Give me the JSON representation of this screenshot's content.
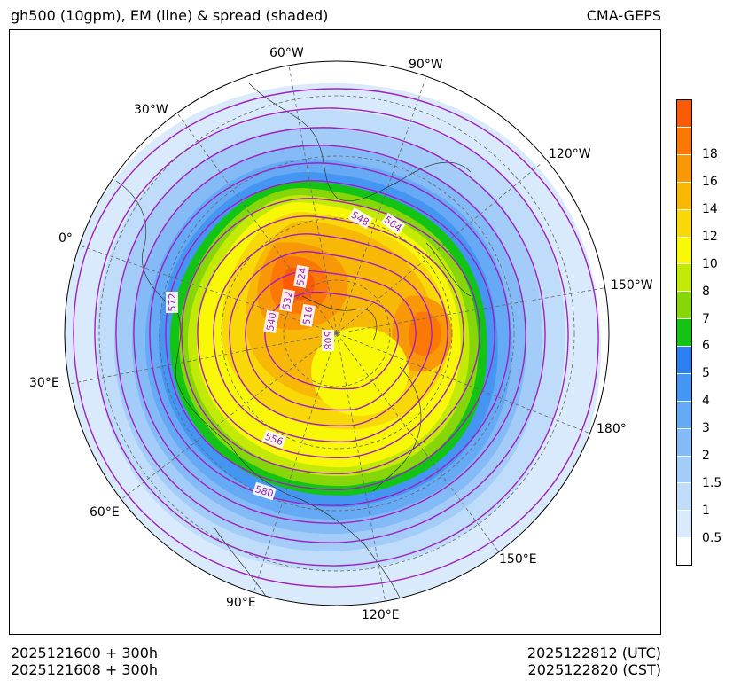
{
  "header": {
    "title": "gh500 (10gpm), EM (line) & spread (shaded)",
    "model": "CMA-GEPS"
  },
  "footer": {
    "init_utc": "2025121600 + 300h",
    "init_cst": "2025121608 + 300h",
    "valid_utc": "2025122812 (UTC)",
    "valid_cst": "2025122820 (CST)"
  },
  "map": {
    "projection": "north-polar-stereographic",
    "longitude_labels": [
      "60°W",
      "90°W",
      "30°W",
      "120°W",
      "0°",
      "150°W",
      "30°E",
      "180°",
      "60°E",
      "150°E",
      "90°E",
      "120°E"
    ],
    "contour_labels": [
      "548",
      "564",
      "572",
      "524",
      "532",
      "540",
      "516",
      "508",
      "556",
      "580"
    ],
    "contour_color": "#a020c0",
    "land_outline_color": "#333333"
  },
  "colorbar": {
    "ticks": [
      "0.5",
      "1",
      "1.5",
      "2",
      "3",
      "4",
      "5",
      "6",
      "7",
      "8",
      "10",
      "12",
      "14",
      "16",
      "18"
    ],
    "colors": [
      "#ffffff",
      "#d8eafb",
      "#bfdcfa",
      "#a3cdf8",
      "#84bbf6",
      "#66a9f4",
      "#4596f2",
      "#2b7ff0",
      "#14c414",
      "#86d60a",
      "#c2ea06",
      "#f8f806",
      "#f8d806",
      "#f8b806",
      "#f89806",
      "#fc7806",
      "#fc5a06"
    ]
  }
}
